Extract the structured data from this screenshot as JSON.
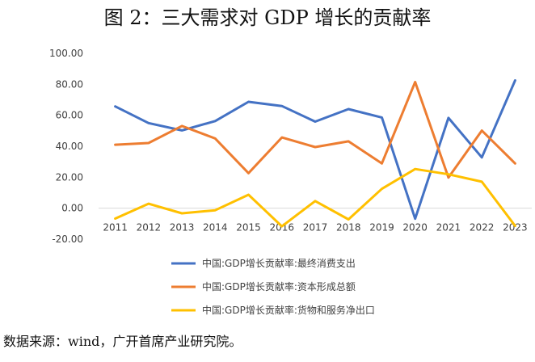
{
  "chart_data": {
    "type": "line",
    "title": "图 2：三大需求对 GDP 增长的贡献率",
    "x": [
      "2011",
      "2012",
      "2013",
      "2014",
      "2015",
      "2016",
      "2017",
      "2018",
      "2019",
      "2020",
      "2021",
      "2022",
      "2023"
    ],
    "y_ticks": [
      "100.00",
      "80.00",
      "60.00",
      "40.00",
      "20.00",
      "0.00",
      "-20.00"
    ],
    "ylim": [
      -20,
      100
    ],
    "xlabel": "",
    "ylabel": "",
    "grid": false,
    "series": [
      {
        "name": "中国:GDP增长贡献率:最终消费支出",
        "color": "#4472C4",
        "values": [
          65.7,
          55.0,
          50.2,
          56.3,
          68.7,
          66.0,
          55.9,
          64.0,
          58.6,
          -6.8,
          58.3,
          32.8,
          82.5
        ]
      },
      {
        "name": "中国:GDP增长贡献率:资本形成总额",
        "color": "#ED7D31",
        "values": [
          41.0,
          42.1,
          53.1,
          45.0,
          22.6,
          45.7,
          39.5,
          43.2,
          28.9,
          81.5,
          19.8,
          50.1,
          28.9
        ]
      },
      {
        "name": "中国:GDP增长贡献率:货物和服务净出口",
        "color": "#FFC000",
        "values": [
          -6.7,
          2.9,
          -3.3,
          -1.3,
          8.7,
          -11.7,
          4.6,
          -7.2,
          12.5,
          25.3,
          21.9,
          17.1,
          -11.4
        ]
      }
    ],
    "legend_position": "bottom"
  },
  "source": "数据来源：wind，广开首席产业研究院。"
}
